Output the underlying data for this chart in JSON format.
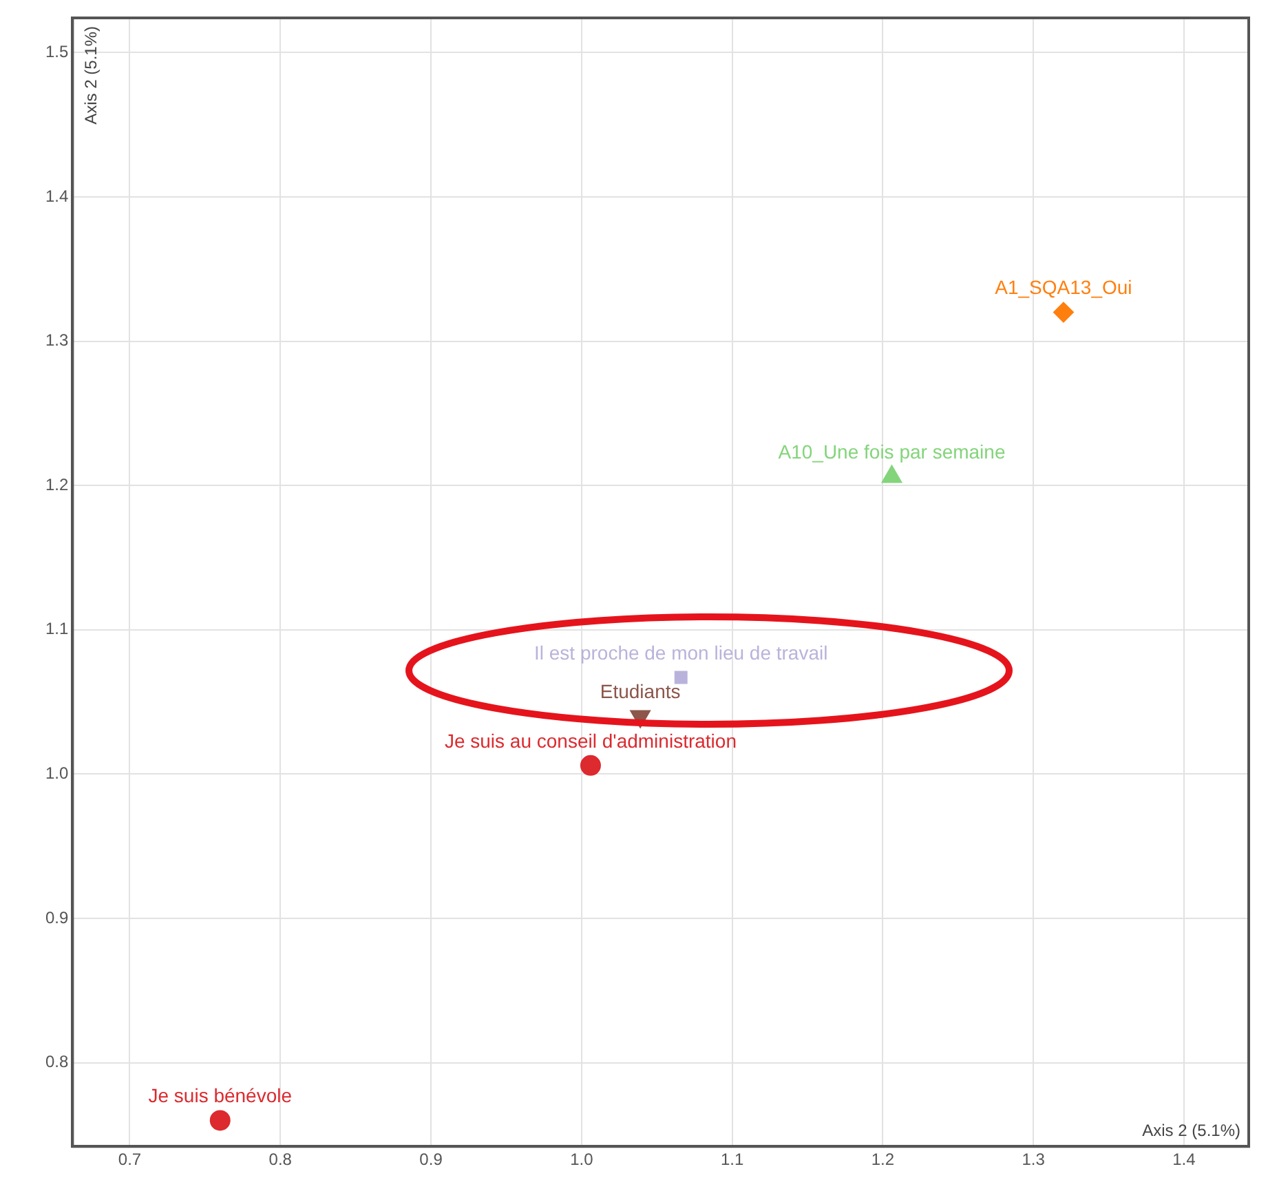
{
  "chart_data": {
    "type": "scatter",
    "xlabel": "Axis 2 (5.1%)",
    "ylabel": "Axis 2 (5.1%)",
    "xlim": [
      0.662,
      1.443
    ],
    "ylim": [
      0.742,
      1.524
    ],
    "xticks": [
      0.7,
      0.8,
      0.9,
      {
        "value": 1,
        "label": "1.0"
      },
      1.1,
      1.2,
      1.3,
      1.4
    ],
    "yticks": [
      0.8,
      0.9,
      {
        "value": 1,
        "label": "1.0"
      },
      1.1,
      1.2,
      1.3,
      1.4,
      1.5
    ],
    "grid": true,
    "legend": false,
    "series": [
      {
        "name": "Je suis bénévole",
        "color": "#dc2a2f",
        "marker": "circle",
        "x": [
          0.76
        ],
        "values": [
          0.76
        ]
      },
      {
        "name": "Je suis au conseil d'administration",
        "color": "#dc2a2f",
        "marker": "circle",
        "x": [
          1.006
        ],
        "values": [
          1.006
        ]
      },
      {
        "name": "Etudiants",
        "color": "#8c564b",
        "marker": "triangle-down",
        "x": [
          1.039
        ],
        "values": [
          1.04
        ]
      },
      {
        "name": "Il est proche de mon lieu de travail",
        "color": "#b9b3dc",
        "marker": "square",
        "x": [
          1.066
        ],
        "values": [
          1.067
        ]
      },
      {
        "name": "A10_Une fois par semaine",
        "color": "#84d47c",
        "marker": "triangle",
        "x": [
          1.206
        ],
        "values": [
          1.206
        ]
      },
      {
        "name": "A1_SQA13_Oui",
        "color": "#ff7f0e",
        "marker": "diamond",
        "x": [
          1.32
        ],
        "values": [
          1.32
        ]
      }
    ]
  }
}
